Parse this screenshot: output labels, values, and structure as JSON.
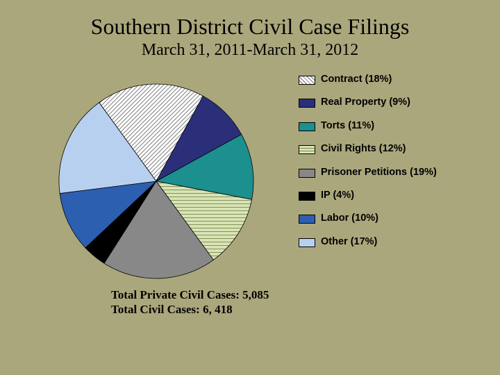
{
  "title": "Southern District Civil Case Filings",
  "subtitle": "March 31, 2011-March 31, 2012",
  "chart": {
    "type": "pie",
    "background_color": "#aba77c",
    "stroke_color": "#000000",
    "stroke_width": 0.8,
    "diameter": 290,
    "slices": [
      {
        "label": "Contract (18%)",
        "value": 18,
        "fill": "#ffffff",
        "pattern": "diag"
      },
      {
        "label": "Real Property (9%)",
        "value": 9,
        "fill": "#2b2f7a",
        "pattern": "none"
      },
      {
        "label": "Torts (11%)",
        "value": 11,
        "fill": "#1c8f8f",
        "pattern": "none"
      },
      {
        "label": "Civil Rights (12%)",
        "value": 12,
        "fill": "#d8e4b5",
        "pattern": "horiz"
      },
      {
        "label": "Prisoner Petitions (19%)",
        "value": 19,
        "fill": "#888888",
        "pattern": "none"
      },
      {
        "label": "IP (4%)",
        "value": 4,
        "fill": "#000000",
        "pattern": "none"
      },
      {
        "label": "Labor (10%)",
        "value": 10,
        "fill": "#2d5fb0",
        "pattern": "none"
      },
      {
        "label": "Other (17%)",
        "value": 17,
        "fill": "#b8d0f0",
        "pattern": "none"
      }
    ],
    "title_fontsize": 32,
    "subtitle_fontsize": 24,
    "legend_fontsize": 14.5,
    "totals_fontsize": 17,
    "start_angle_deg": -126
  },
  "totals": {
    "line1": "Total Private Civil Cases: 5,085",
    "line2": "Total Civil Cases: 6, 418"
  }
}
